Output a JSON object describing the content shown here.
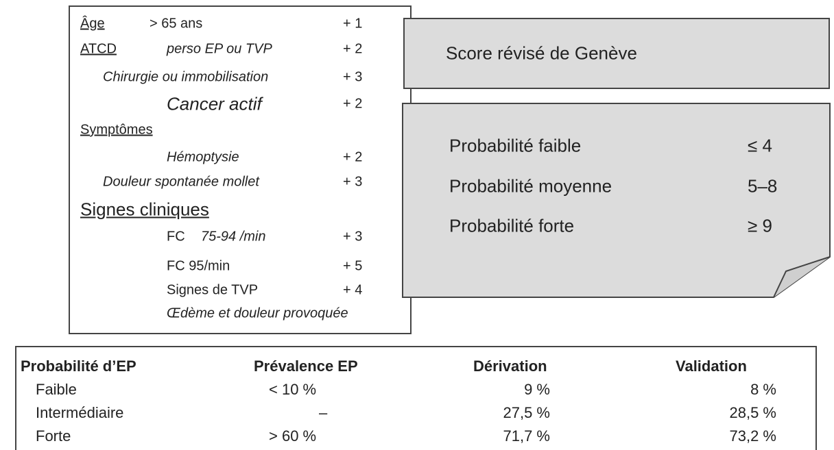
{
  "criteria": [
    {
      "label": "Âge",
      "detail": "> 65 ans",
      "points": "+ 1"
    },
    {
      "label": "ATCD",
      "detail": "perso EP ou TVP",
      "points": "+ 2"
    },
    {
      "detail": "Chirurgie ou immobilisation",
      "points": "+ 3"
    },
    {
      "detail": "Cancer actif",
      "points": "+ 2"
    },
    {
      "label": "Symptômes"
    },
    {
      "detail": "Hémoptysie",
      "points": "+ 2"
    },
    {
      "detail": "Douleur spontanée mollet",
      "points": "+ 3"
    },
    {
      "label": "Signes cliniques"
    },
    {
      "label": "FC",
      "detail": "75-94 /min",
      "points": "+ 3"
    },
    {
      "detail": "FC  95/min",
      "points": "+ 5"
    },
    {
      "detail": "Signes de TVP",
      "points": "+ 4"
    },
    {
      "detail": "Œdème et douleur provoquée"
    }
  ],
  "score_title": "Score révisé de Genève",
  "probabilities": [
    {
      "label": "Probabilité faible",
      "score": "≤ 4"
    },
    {
      "label": "Probabilité moyenne",
      "score": "5–8"
    },
    {
      "label": "Probabilité forte",
      "score": "≥ 9"
    }
  ],
  "table": {
    "header": [
      "Probabilité d’EP",
      "Prévalence EP",
      "Dérivation",
      "Validation"
    ],
    "rows": [
      [
        "Faible",
        "< 10 %",
        "9 %",
        "8 %"
      ],
      [
        "Intermédiaire",
        "–",
        "27,5 %",
        "28,5 %"
      ],
      [
        "Forte",
        "> 60 %",
        "71,7 %",
        "73,2 %"
      ]
    ]
  }
}
